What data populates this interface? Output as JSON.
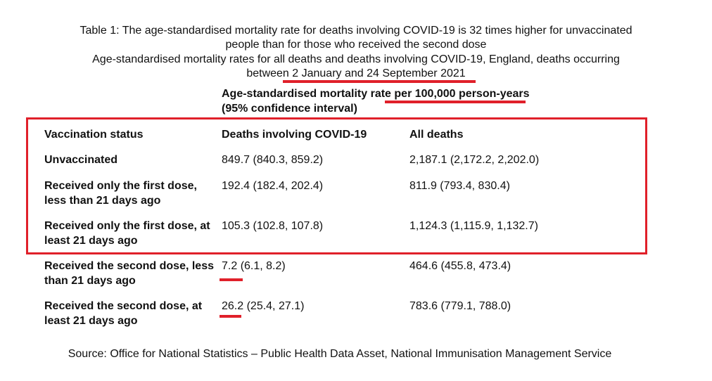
{
  "caption": {
    "line1": "Table 1: The age-standardised mortality rate for deaths involving COVID-19 is 32 times higher for unvaccinated",
    "line2": "people than for those who received the second dose",
    "line3": "Age-standardised mortality rates for all deaths and deaths involving COVID-19, England, deaths occurring",
    "line4": "between 2 January and 24 September 2021"
  },
  "table": {
    "rate_heading": "Age-standardised mortality rate per 100,000 person-years",
    "ci_heading": "(95% confidence interval)",
    "columns": [
      "Vaccination status",
      "Deaths involving COVID-19",
      "All deaths"
    ],
    "rows": [
      {
        "status": "Unvaccinated",
        "covid": "849.7 (840.3, 859.2)",
        "all": "2,187.1 (2,172.2, 2,202.0)"
      },
      {
        "status": "Received only the first dose, less than 21 days ago",
        "covid": "192.4 (182.4, 202.4)",
        "all": "811.9 (793.4, 830.4)"
      },
      {
        "status": "Received only the first dose, at least 21 days ago",
        "covid": "105.3 (102.8, 107.8)",
        "all": "1,124.3 (1,115.9, 1,132.7)"
      },
      {
        "status": "Received the second dose, less than 21 days ago",
        "covid": "7.2 (6.1, 8.2)",
        "all": "464.6 (455.8, 473.4)"
      },
      {
        "status": "Received the second dose, at least 21 days ago",
        "covid": "26.2 (25.4, 27.1)",
        "all": "783.6 (779.1, 788.0)"
      }
    ]
  },
  "source": "Source: Office for National Statistics – Public Health Data Asset, National Immunisation Management Service",
  "colors": {
    "annotation_red": "#e0202a",
    "text": "#111111",
    "background": "#ffffff"
  }
}
